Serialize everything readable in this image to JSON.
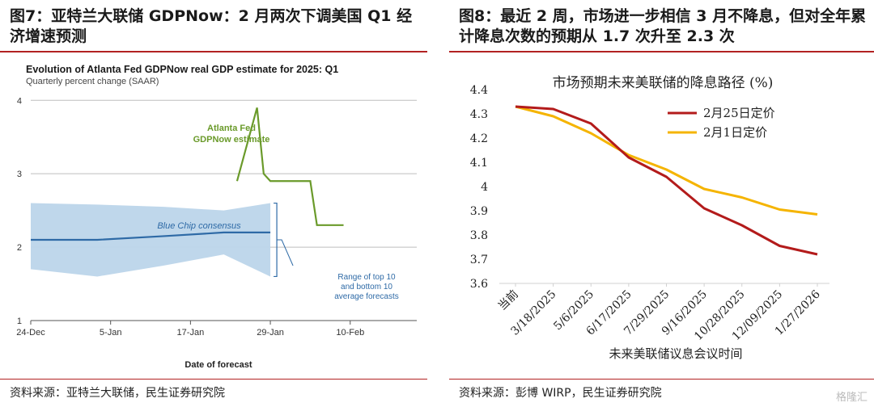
{
  "left_panel": {
    "figure_title": "图7：亚特兰大联储 GDPNow：2 月两次下调美国 Q1 经济增速预测",
    "source": "资料来源：亚特兰大联储，民生证券研究院"
  },
  "right_panel": {
    "figure_title": "图8：最近 2 周，市场进一步相信 3 月不降息，但对全年累计降息次数的预期从 1.7 次升至 2.3 次",
    "source": "资料来源：彭博 WIRP，民生证券研究院"
  },
  "watermark": "格隆汇",
  "chart_data": [
    {
      "type": "line",
      "title": "Evolution of Atlanta Fed GDPNow real GDP estimate for 2025: Q1",
      "subtitle": "Quarterly percent change (SAAR)",
      "xlabel": "Date of forecast",
      "ylabel": "",
      "x_ticks": [
        "24-Dec",
        "5-Jan",
        "17-Jan",
        "29-Jan",
        "10-Feb"
      ],
      "x_tick_days": [
        0,
        12,
        24,
        36,
        48
      ],
      "xlim": [
        0,
        58
      ],
      "y_ticks": [
        "1",
        "2",
        "3",
        "4"
      ],
      "ylim": [
        1,
        4.3
      ],
      "grid": true,
      "series": [
        {
          "name": "Atlanta Fed GDPNow estimate",
          "color": "#6a9a2a",
          "x": [
            31,
            34,
            35,
            36,
            42,
            43,
            47
          ],
          "y": [
            2.9,
            3.9,
            3.0,
            2.9,
            2.9,
            2.3,
            2.3
          ]
        },
        {
          "name": "Blue Chip consensus",
          "color": "#2e6aa6",
          "x": [
            0,
            10,
            20,
            29,
            36
          ],
          "y": [
            2.1,
            2.1,
            2.15,
            2.2,
            2.2
          ]
        }
      ],
      "band": {
        "name": "Range of top 10 and bottom 10 average forecasts",
        "color": "#bcd5ea",
        "x": [
          0,
          10,
          20,
          29,
          36
        ],
        "upper": [
          2.6,
          2.58,
          2.55,
          2.5,
          2.6
        ],
        "lower": [
          1.7,
          1.6,
          1.75,
          1.9,
          1.6
        ]
      },
      "annotations": [
        "Atlanta Fed",
        "GDPNow estimate",
        "Blue Chip consensus",
        "Range of top 10",
        "and bottom 10",
        "average forecasts"
      ]
    },
    {
      "type": "line",
      "title": "市场预期未来美联储的降息路径 (%)",
      "xlabel": "未来美联储议息会议时间",
      "ylabel": "",
      "categories": [
        "当前",
        "3/18/2025",
        "5/6/2025",
        "6/17/2025",
        "7/29/2025",
        "9/16/2025",
        "10/28/2025",
        "12/09/2025",
        "1/27/2026"
      ],
      "y_ticks": [
        "3.6",
        "3.7",
        "3.8",
        "3.9",
        "4",
        "4.1",
        "4.2",
        "4.3",
        "4.4"
      ],
      "ylim": [
        3.6,
        4.4
      ],
      "grid": false,
      "legend_position": "top-right",
      "series": [
        {
          "name": "2月25日定价",
          "color": "#b31b1b",
          "values": [
            4.33,
            4.32,
            4.26,
            4.12,
            4.04,
            3.91,
            3.84,
            3.755,
            3.72
          ]
        },
        {
          "name": "2月1日定价",
          "color": "#f5b400",
          "values": [
            4.33,
            4.29,
            4.22,
            4.13,
            4.07,
            3.99,
            3.955,
            3.905,
            3.885
          ]
        }
      ]
    }
  ]
}
